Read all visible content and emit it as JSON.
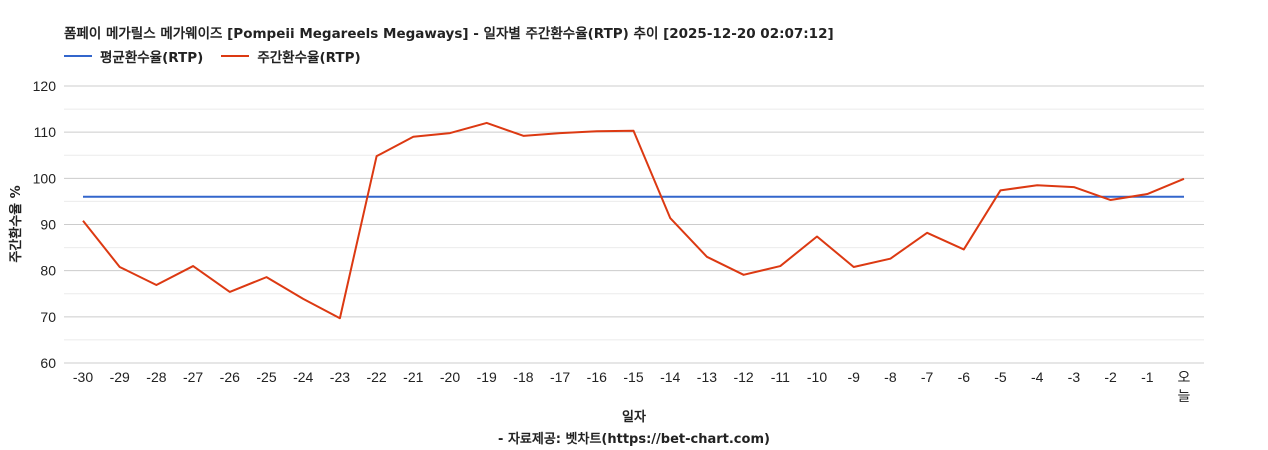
{
  "header": {
    "title": "폼페이 메가릴스 메가웨이즈 [Pompeii Megareels Megaways] - 일자별 주간환수율(RTP) 추이 [2025-12-20 02:07:12]"
  },
  "legend": {
    "items": [
      {
        "label": "평균환수율(RTP)",
        "color": "#3366cc"
      },
      {
        "label": "주간환수율(RTP)",
        "color": "#dc3912"
      }
    ]
  },
  "axes": {
    "xlabel": "일자",
    "ylabel": "주간환수율 %"
  },
  "footer": {
    "credit": "- 자료제공: 벳차트(https://bet-chart.com)"
  },
  "chart_data": {
    "type": "line",
    "title": "폼페이 메가릴스 메가웨이즈 [Pompeii Megareels Megaways] - 일자별 주간환수율(RTP) 추이 [2025-12-20 02:07:12]",
    "xlabel": "일자",
    "ylabel": "주간환수율 %",
    "ylim": [
      60,
      120
    ],
    "yticks": [
      60,
      70,
      80,
      90,
      100,
      110,
      120
    ],
    "grid": true,
    "legend_position": "top-left",
    "categories": [
      "-30",
      "-29",
      "-28",
      "-27",
      "-26",
      "-25",
      "-24",
      "-23",
      "-22",
      "-21",
      "-20",
      "-19",
      "-18",
      "-17",
      "-16",
      "-15",
      "-14",
      "-13",
      "-12",
      "-11",
      "-10",
      "-9",
      "-8",
      "-7",
      "-6",
      "-5",
      "-4",
      "-3",
      "-2",
      "-1",
      "오늘"
    ],
    "series": [
      {
        "name": "평균환수율(RTP)",
        "color": "#3366cc",
        "values": [
          96.0,
          96.0,
          96.0,
          96.0,
          96.0,
          96.0,
          96.0,
          96.0,
          96.0,
          96.0,
          96.0,
          96.0,
          96.0,
          96.0,
          96.0,
          96.0,
          96.0,
          96.0,
          96.0,
          96.0,
          96.0,
          96.0,
          96.0,
          96.0,
          96.0,
          96.0,
          96.0,
          96.0,
          96.0,
          96.0,
          96.0
        ]
      },
      {
        "name": "주간환수율(RTP)",
        "color": "#dc3912",
        "values": [
          90.8,
          80.8,
          76.9,
          81.0,
          75.4,
          78.6,
          73.9,
          69.7,
          104.8,
          109.0,
          109.8,
          112.0,
          109.2,
          109.8,
          110.2,
          110.3,
          91.4,
          83.0,
          79.1,
          81.0,
          87.4,
          80.8,
          82.6,
          88.2,
          84.6,
          97.4,
          98.5,
          98.1,
          95.3,
          96.6,
          99.9
        ]
      }
    ]
  }
}
